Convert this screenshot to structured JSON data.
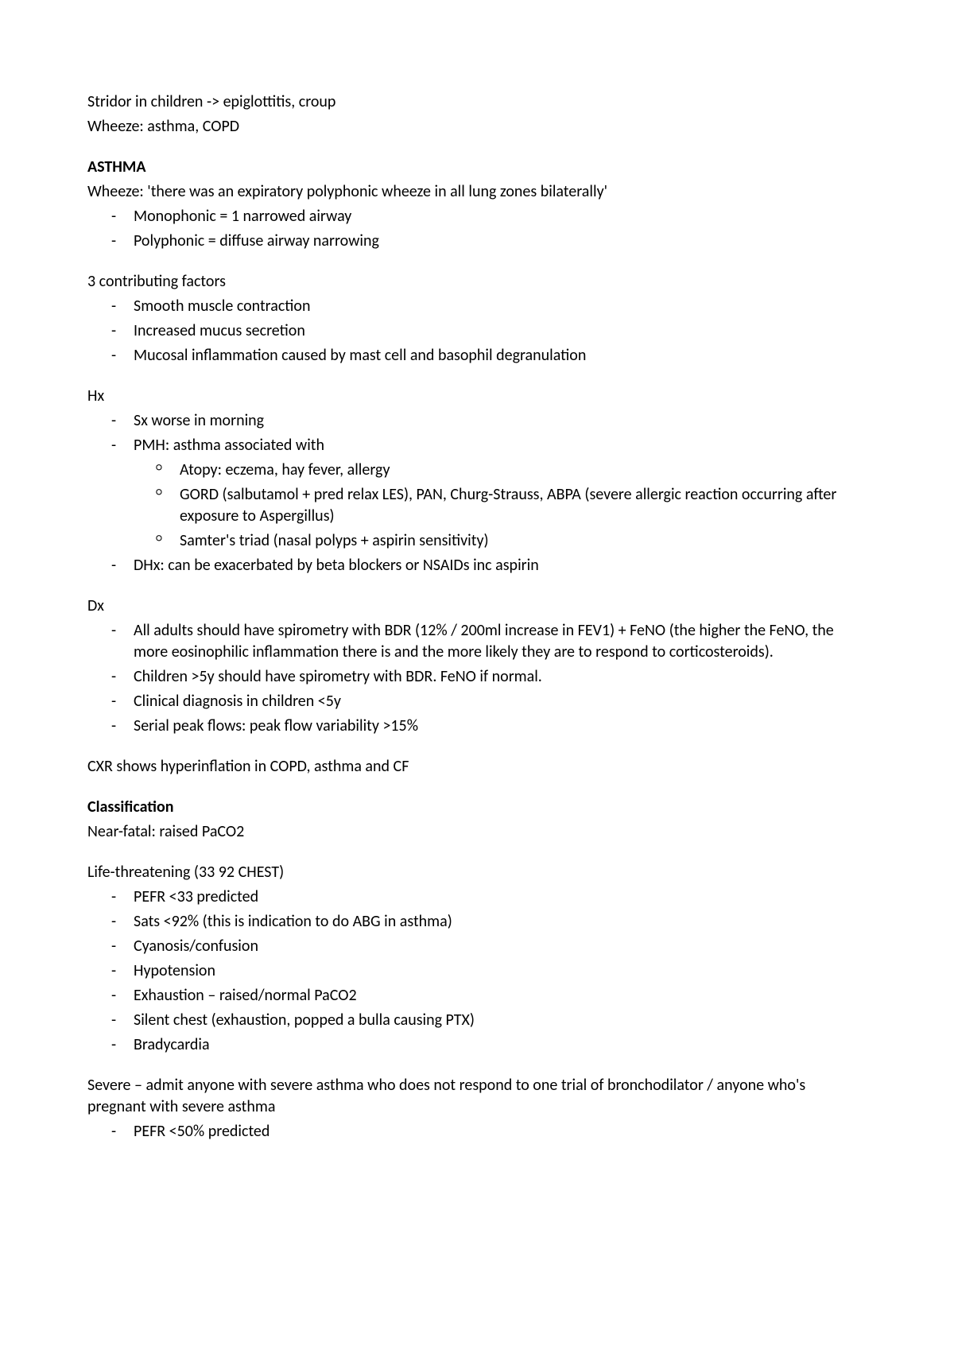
{
  "intro": {
    "line1": "Stridor in children -> epiglottitis, croup",
    "line2": "Wheeze: asthma, COPD"
  },
  "asthma": {
    "heading": "ASTHMA",
    "wheeze_line": "Wheeze: 'there was an expiratory polyphonic wheeze in all lung zones bilaterally'",
    "wheeze_items": [
      "Monophonic = 1 narrowed airway",
      "Polyphonic = diffuse airway narrowing"
    ],
    "factors_heading": "3 contributing factors",
    "factors_items": [
      "Smooth muscle contraction",
      "Increased mucus secretion",
      "Mucosal inflammation caused by mast cell and basophil degranulation"
    ],
    "hx_heading": "Hx",
    "hx_item1": "Sx worse in morning",
    "hx_item2": "PMH: asthma associated with",
    "hx_sub": [
      "Atopy: eczema, hay fever, allergy",
      "GORD (salbutamol + pred relax LES), PAN, Churg-Strauss, ABPA (severe allergic reaction occurring after exposure to Aspergillus)",
      "Samter's triad (nasal polyps + aspirin sensitivity)"
    ],
    "hx_item3": "DHx: can be exacerbated by beta blockers or NSAIDs inc aspirin",
    "dx_heading": "Dx",
    "dx_items": [
      "All adults should have spirometry with BDR (12% / 200ml increase in FEV1) + FeNO (the higher the FeNO, the more eosinophilic inflammation there is and the more likely they are to respond to corticosteroids).",
      "Children >5y should have spirometry with BDR. FeNO if normal.",
      "Clinical diagnosis in children <5y",
      "Serial peak flows: peak flow variability >15%"
    ],
    "cxr_line": "CXR shows hyperinflation in COPD, asthma and CF",
    "classification_heading": "Classification",
    "near_fatal": "Near-fatal: raised PaCO2",
    "life_threat_heading": "Life-threatening (33 92 CHEST)",
    "life_threat_items": [
      "PEFR <33 predicted",
      "Sats <92% (this is indication to do ABG in asthma)",
      "Cyanosis/confusion",
      "Hypotension",
      "Exhaustion – raised/normal PaCO2",
      "Silent chest (exhaustion, popped a bulla causing PTX)",
      "Bradycardia"
    ],
    "severe_heading": "Severe – admit anyone with severe asthma who does not respond to one trial of bronchodilator / anyone who's pregnant with severe asthma",
    "severe_items": [
      "PEFR <50% predicted"
    ]
  }
}
